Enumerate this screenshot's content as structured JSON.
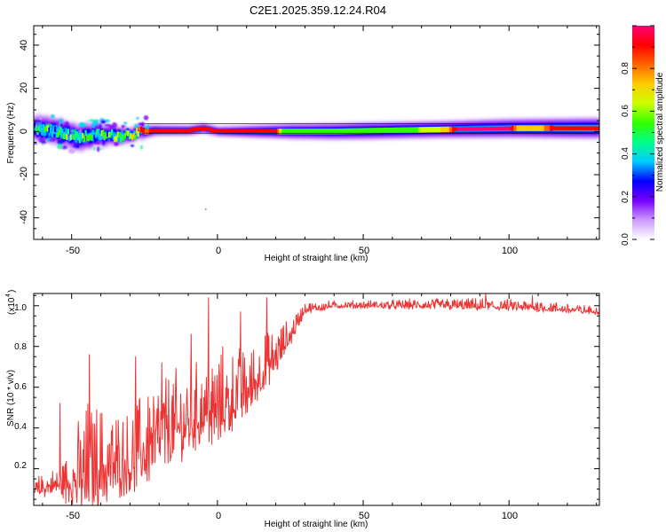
{
  "figure_title": "C2E1.2025.359.12.24.R04",
  "colors": {
    "snr_line": "#ee3333",
    "ridge": "#d21c2a",
    "axis": "#000000"
  },
  "chart_data": [
    {
      "type": "heatmap",
      "xlabel": "Height of straight line (km)",
      "ylabel": "Frequency (Hz)",
      "xlim": [
        -63,
        131
      ],
      "ylim": [
        -50,
        49
      ],
      "xticks": [
        -50,
        0,
        50,
        100
      ],
      "xtick_labels": [
        "-50",
        "0",
        "50",
        "100"
      ],
      "yticks": [
        -40,
        -20,
        0,
        20,
        40
      ],
      "ytick_labels": [
        "-40",
        "-20",
        "0",
        "20",
        "40"
      ],
      "colorbar": {
        "label": "Normalized spectral amplitude",
        "range": [
          0,
          1
        ],
        "ticks": [
          0.0,
          0.2,
          0.4,
          0.6,
          0.8
        ],
        "tick_labels": [
          "0.0",
          "0.2",
          "0.4",
          "0.6",
          "0.8"
        ],
        "colormap": [
          "#ffffff",
          "#cc99ff",
          "#7700ff",
          "#0000ff",
          "#00ccff",
          "#00ff88",
          "#33ff00",
          "#ccff00",
          "#ffcc00",
          "#ff6600",
          "#ff0000",
          "#ff0077"
        ]
      },
      "ridge_center_hz": [
        [
          -63,
          1.5
        ],
        [
          -55,
          0
        ],
        [
          -48,
          -3
        ],
        [
          -42,
          -1.5
        ],
        [
          -35,
          -2
        ],
        [
          -28,
          -1
        ],
        [
          -22,
          0.5
        ],
        [
          -10,
          0.5
        ],
        [
          -5,
          1.5
        ],
        [
          0,
          0
        ],
        [
          20,
          0
        ],
        [
          40,
          0
        ],
        [
          60,
          0.5
        ],
        [
          80,
          1
        ],
        [
          100,
          1.5
        ],
        [
          131,
          1.5
        ]
      ],
      "ridge_halfwidth_hz": [
        [
          -63,
          6
        ],
        [
          -45,
          6
        ],
        [
          -32,
          3.5
        ],
        [
          -20,
          2.2
        ],
        [
          0,
          2
        ],
        [
          25,
          3.5
        ],
        [
          50,
          4
        ],
        [
          75,
          4
        ],
        [
          100,
          4.5
        ],
        [
          131,
          5
        ]
      ],
      "ridge_amplitude": [
        [
          -63,
          0.45
        ],
        [
          -50,
          0.5
        ],
        [
          -40,
          0.45
        ],
        [
          -30,
          0.6
        ],
        [
          -22,
          0.95
        ],
        [
          20,
          0.95
        ],
        [
          22,
          0.55
        ],
        [
          45,
          0.5
        ],
        [
          65,
          0.55
        ],
        [
          78,
          0.7
        ],
        [
          82,
          0.98
        ],
        [
          100,
          0.98
        ],
        [
          103,
          0.7
        ],
        [
          110,
          0.7
        ],
        [
          116,
          0.95
        ],
        [
          131,
          0.95
        ]
      ]
    },
    {
      "type": "line",
      "multiplier_label": "(x10",
      "multiplier_exponent": "4",
      "multiplier_close": ")",
      "xlabel": "Height of straight line (km)",
      "ylabel": "SNR (10 * v/v)",
      "xlim": [
        -63,
        131
      ],
      "ylim": [
        0.02,
        1.06
      ],
      "xticks": [
        -50,
        0,
        50,
        100
      ],
      "xtick_labels": [
        "-50",
        "0",
        "50",
        "100"
      ],
      "yticks": [
        0.2,
        0.4,
        0.6,
        0.8,
        1.0
      ],
      "ytick_labels": [
        "0.2",
        "0.4",
        "0.6",
        "0.8",
        "1.0"
      ],
      "series_envelope": {
        "x": [
          -63,
          -55,
          -50,
          -45,
          -40,
          -30,
          -25,
          -20,
          -10,
          -5,
          0,
          5,
          10,
          15,
          20,
          25,
          30,
          40,
          50,
          80,
          110,
          131
        ],
        "baseline": [
          0.09,
          0.12,
          0.13,
          0.16,
          0.2,
          0.22,
          0.28,
          0.34,
          0.42,
          0.47,
          0.48,
          0.53,
          0.57,
          0.66,
          0.74,
          0.85,
          0.98,
          1.0,
          1.0,
          1.0,
          0.99,
          0.97
        ],
        "spread": [
          0.05,
          0.07,
          0.15,
          0.3,
          0.25,
          0.2,
          0.25,
          0.25,
          0.22,
          0.2,
          0.25,
          0.2,
          0.18,
          0.15,
          0.12,
          0.07,
          0.03,
          0.02,
          0.02,
          0.03,
          0.03,
          0.02
        ]
      },
      "peaks": [
        [
          -54,
          0.52
        ],
        [
          -44,
          0.76
        ],
        [
          -28,
          0.75
        ],
        [
          -19,
          0.72
        ],
        [
          -9,
          0.86
        ],
        [
          -3,
          1.04
        ],
        [
          8,
          0.97
        ],
        [
          17,
          1.04
        ],
        [
          92,
          1.06
        ],
        [
          108,
          1.05
        ]
      ],
      "dips": [
        [
          -52,
          0.03
        ],
        [
          -38,
          0.04
        ],
        [
          -2,
          0.32
        ],
        [
          4,
          0.39
        ]
      ]
    }
  ]
}
